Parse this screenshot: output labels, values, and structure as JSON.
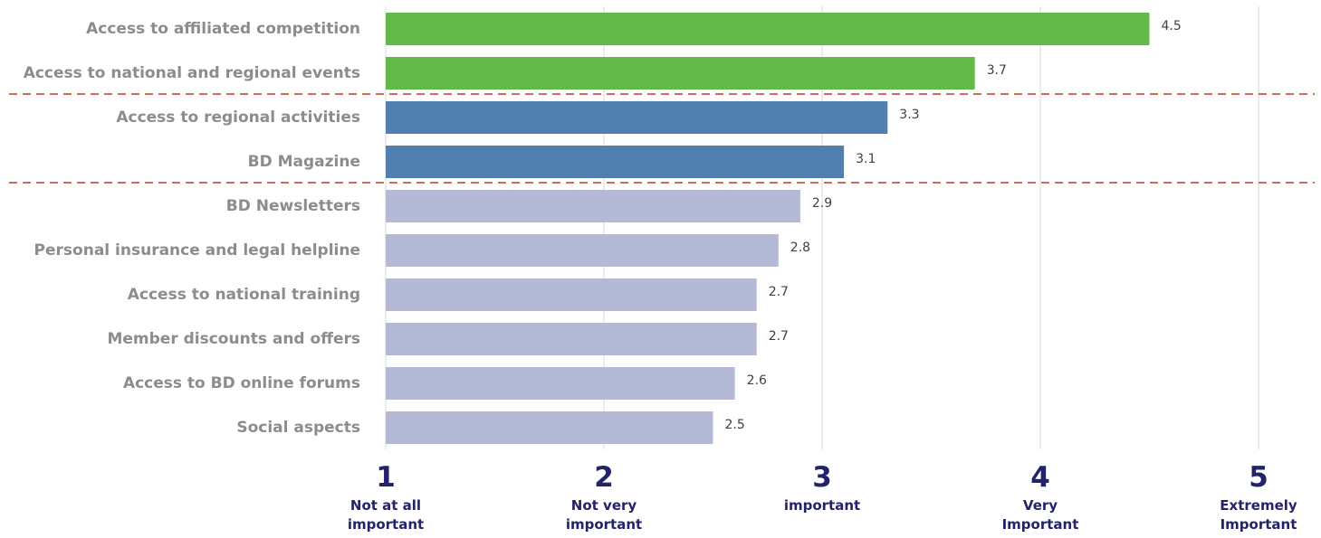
{
  "chart_data": {
    "type": "bar",
    "orientation": "horizontal",
    "categories": [
      "Access to affiliated competition",
      "Access to national and regional events",
      "Access to regional activities",
      "BD Magazine",
      "BD Newsletters",
      "Personal insurance and legal helpline",
      "Access to national training",
      "Member discounts and offers",
      "Access to BD online forums",
      "Social aspects"
    ],
    "values": [
      4.5,
      3.7,
      3.3,
      3.1,
      2.9,
      2.8,
      2.7,
      2.7,
      2.6,
      2.5
    ],
    "value_labels": [
      "4.5",
      "3.7",
      "3.3",
      "3.1",
      "2.9",
      "2.8",
      "2.7",
      "2.7",
      "2.6",
      "2.5"
    ],
    "bar_colors": [
      "#62b849",
      "#62b849",
      "#5180b0",
      "#5180b0",
      "#b4b9d6",
      "#b4b9d6",
      "#b4b9d6",
      "#b4b9d6",
      "#b4b9d6",
      "#b4b9d6"
    ],
    "xlim": [
      1,
      5
    ],
    "ticks": [
      {
        "value": 1,
        "number": "1",
        "desc": [
          "Not at all",
          "important"
        ]
      },
      {
        "value": 2,
        "number": "2",
        "desc": [
          "Not very",
          "important"
        ]
      },
      {
        "value": 3,
        "number": "3",
        "desc": [
          "important"
        ]
      },
      {
        "value": 4,
        "number": "4",
        "desc": [
          "Very",
          "Important"
        ]
      },
      {
        "value": 5,
        "number": "5",
        "desc": [
          "Extremely",
          "Important"
        ]
      }
    ],
    "separators_after_index": [
      1,
      3
    ],
    "grid": true,
    "colors": {
      "gridline": "#d9d9d9",
      "separator": "#c0392b",
      "category_text": "#8c8c8c",
      "tick_text": "#23236b",
      "value_text": "#404040"
    }
  }
}
